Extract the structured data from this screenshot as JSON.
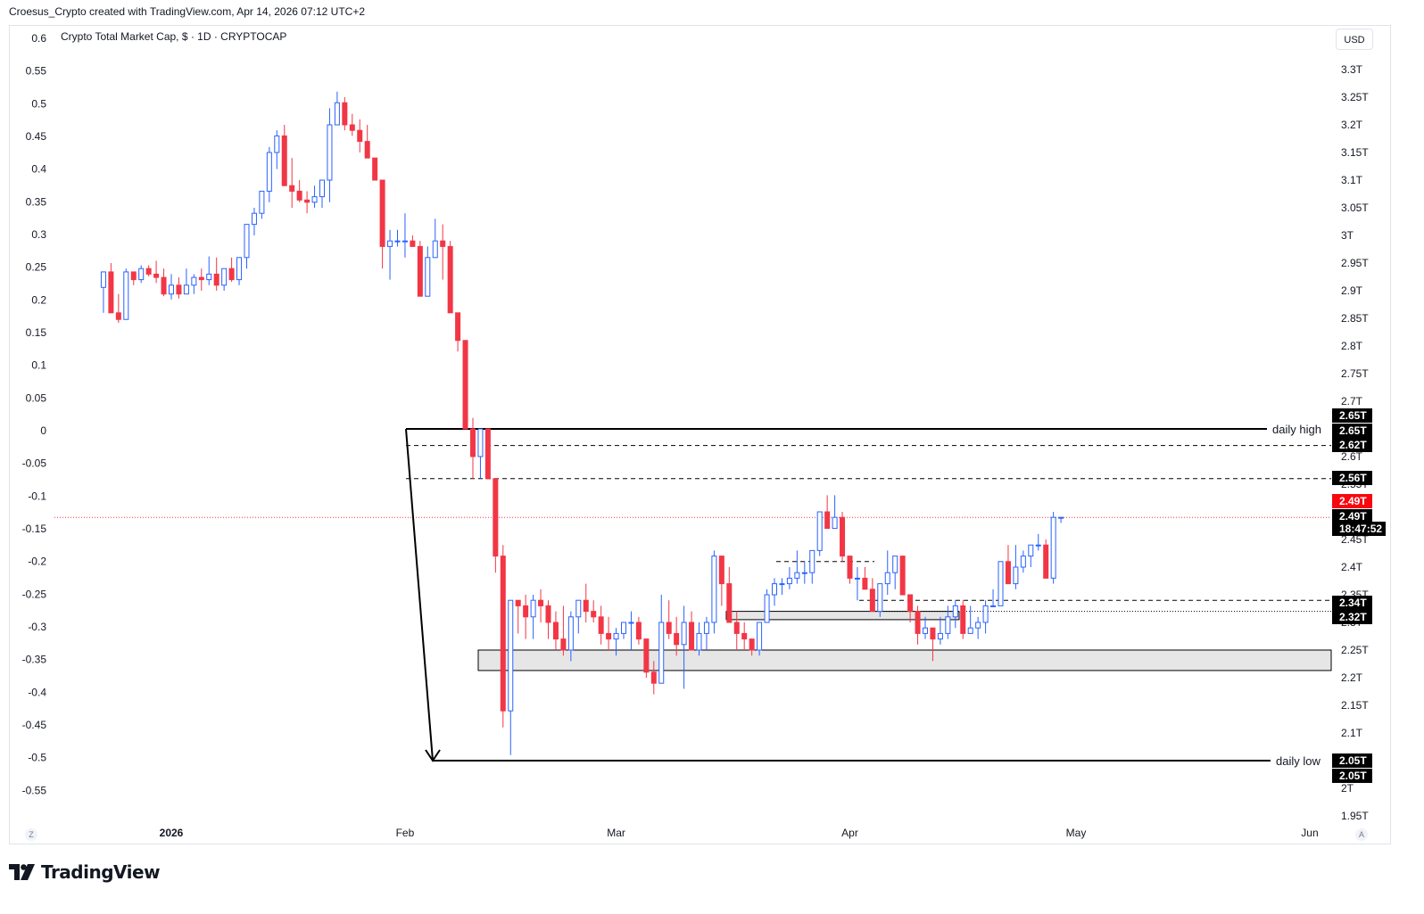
{
  "header": {
    "attribution": "Croesus_Crypto created with TradingView.com, Apr 14, 2026 07:12 UTC+2"
  },
  "legend": {
    "symbol_line": "Crypto Total Market Cap, $ · 1D · CRYPTOCAP"
  },
  "currency_button": "USD",
  "logo": {
    "text": "TradingView"
  },
  "corner_buttons": {
    "left": "Z",
    "right": "A"
  },
  "colors": {
    "up": "#2962ff",
    "down": "#f23645",
    "zone_fill": "#e6e6e6",
    "label_bg": "#000000",
    "current_price_bg": "#f7070f"
  },
  "chart_data": {
    "type": "candlestick",
    "title": "Crypto Total Market Cap, $ · 1D · CRYPTOCAP",
    "right_axis": {
      "unit": "USD",
      "range": [
        1.95,
        3.32
      ],
      "ticks": [
        "3.3T",
        "3.25T",
        "3.2T",
        "3.15T",
        "3.1T",
        "3.05T",
        "3T",
        "2.95T",
        "2.9T",
        "2.85T",
        "2.8T",
        "2.75T",
        "2.7T",
        "2.6T",
        "2.55T",
        "2.45T",
        "2.4T",
        "2.35T",
        "2.3T",
        "2.25T",
        "2.2T",
        "2.15T",
        "2.1T",
        "2T",
        "1.95T"
      ],
      "tick_values": [
        3.3,
        3.25,
        3.2,
        3.15,
        3.1,
        3.05,
        3.0,
        2.95,
        2.9,
        2.85,
        2.8,
        2.75,
        2.7,
        2.6,
        2.55,
        2.45,
        2.4,
        2.35,
        2.3,
        2.25,
        2.2,
        2.15,
        2.1,
        2.0,
        1.95
      ]
    },
    "left_axis": {
      "range": [
        -0.55,
        0.6
      ],
      "ticks": [
        "0.6",
        "0.55",
        "0.5",
        "0.45",
        "0.4",
        "0.35",
        "0.3",
        "0.25",
        "0.2",
        "0.15",
        "0.1",
        "0.05",
        "0",
        "-0.05",
        "-0.1",
        "-0.15",
        "-0.2",
        "-0.25",
        "-0.3",
        "-0.35",
        "-0.4",
        "-0.45",
        "-0.5",
        "-0.55"
      ],
      "tick_values": [
        0.6,
        0.55,
        0.5,
        0.45,
        0.4,
        0.35,
        0.3,
        0.25,
        0.2,
        0.15,
        0.1,
        0.05,
        0,
        -0.05,
        -0.1,
        -0.15,
        -0.2,
        -0.25,
        -0.3,
        -0.35,
        -0.4,
        -0.45,
        -0.5,
        -0.55
      ]
    },
    "x_axis": {
      "labels": [
        "2026",
        "Feb",
        "Mar",
        "Apr",
        "May",
        "Jun"
      ],
      "label_dates": [
        "2026-01-01",
        "2026-02-01",
        "2026-03-01",
        "2026-04-01",
        "2026-05-01",
        "2026-06-01"
      ]
    },
    "candles_start_date": "2025-12-23",
    "candles": [
      [
        2.906,
        2.934,
        2.86,
        2.934
      ],
      [
        2.934,
        2.95,
        2.86,
        2.86
      ],
      [
        2.86,
        2.894,
        2.842,
        2.848
      ],
      [
        2.848,
        2.94,
        2.848,
        2.934
      ],
      [
        2.934,
        2.934,
        2.91,
        2.92
      ],
      [
        2.92,
        2.946,
        2.914,
        2.94
      ],
      [
        2.94,
        2.946,
        2.926,
        2.93
      ],
      [
        2.93,
        2.954,
        2.914,
        2.924
      ],
      [
        2.924,
        2.94,
        2.89,
        2.894
      ],
      [
        2.894,
        2.93,
        2.884,
        2.91
      ],
      [
        2.91,
        2.924,
        2.886,
        2.894
      ],
      [
        2.894,
        2.94,
        2.894,
        2.91
      ],
      [
        2.91,
        2.93,
        2.894,
        2.924
      ],
      [
        2.924,
        2.94,
        2.9,
        2.92
      ],
      [
        2.92,
        2.962,
        2.91,
        2.93
      ],
      [
        2.93,
        2.96,
        2.9,
        2.91
      ],
      [
        2.91,
        2.94,
        2.9,
        2.94
      ],
      [
        2.94,
        2.96,
        2.916,
        2.92
      ],
      [
        2.92,
        2.96,
        2.91,
        2.96
      ],
      [
        2.96,
        3.02,
        2.94,
        3.02
      ],
      [
        3.02,
        3.05,
        3.0,
        3.04
      ],
      [
        3.04,
        3.08,
        3.03,
        3.08
      ],
      [
        3.08,
        3.16,
        3.06,
        3.15
      ],
      [
        3.15,
        3.19,
        3.12,
        3.18
      ],
      [
        3.18,
        3.2,
        3.09,
        3.09
      ],
      [
        3.09,
        3.14,
        3.05,
        3.08
      ],
      [
        3.08,
        3.1,
        3.06,
        3.064
      ],
      [
        3.064,
        3.08,
        3.04,
        3.06
      ],
      [
        3.06,
        3.09,
        3.05,
        3.07
      ],
      [
        3.07,
        3.1,
        3.05,
        3.1
      ],
      [
        3.1,
        3.23,
        3.06,
        3.2
      ],
      [
        3.2,
        3.26,
        3.2,
        3.24
      ],
      [
        3.24,
        3.25,
        3.19,
        3.2
      ],
      [
        3.2,
        3.22,
        3.18,
        3.19
      ],
      [
        3.19,
        3.21,
        3.15,
        3.17
      ],
      [
        3.17,
        3.2,
        3.14,
        3.14
      ],
      [
        3.14,
        3.14,
        3.1,
        3.1
      ],
      [
        3.1,
        3.1,
        2.94,
        2.98
      ],
      [
        2.98,
        3.01,
        2.92,
        2.99
      ],
      [
        2.99,
        3.01,
        2.98,
        2.99
      ],
      [
        2.99,
        3.04,
        2.96,
        2.99
      ],
      [
        2.99,
        3.0,
        2.98,
        2.98
      ],
      [
        2.98,
        2.99,
        2.89,
        2.89
      ],
      [
        2.89,
        2.98,
        2.89,
        2.96
      ],
      [
        2.96,
        3.03,
        2.96,
        2.99
      ],
      [
        2.99,
        3.02,
        2.92,
        2.98
      ],
      [
        2.98,
        2.99,
        2.86,
        2.86
      ],
      [
        2.86,
        2.86,
        2.79,
        2.81
      ],
      [
        2.81,
        2.81,
        2.65,
        2.65
      ],
      [
        2.65,
        2.67,
        2.56,
        2.6
      ],
      [
        2.6,
        2.65,
        2.56,
        2.65
      ],
      [
        2.65,
        2.65,
        2.56,
        2.56
      ],
      [
        2.56,
        2.56,
        2.39,
        2.42
      ],
      [
        2.42,
        2.44,
        2.11,
        2.14
      ],
      [
        2.14,
        2.34,
        2.06,
        2.34
      ],
      [
        2.34,
        2.34,
        2.28,
        2.33
      ],
      [
        2.33,
        2.35,
        2.27,
        2.31
      ],
      [
        2.31,
        2.35,
        2.27,
        2.34
      ],
      [
        2.34,
        2.36,
        2.3,
        2.33
      ],
      [
        2.33,
        2.34,
        2.27,
        2.3
      ],
      [
        2.3,
        2.32,
        2.25,
        2.27
      ],
      [
        2.27,
        2.33,
        2.24,
        2.25
      ],
      [
        2.25,
        2.32,
        2.23,
        2.31
      ],
      [
        2.31,
        2.34,
        2.28,
        2.34
      ],
      [
        2.34,
        2.37,
        2.3,
        2.32
      ],
      [
        2.32,
        2.34,
        2.3,
        2.31
      ],
      [
        2.31,
        2.33,
        2.26,
        2.28
      ],
      [
        2.28,
        2.31,
        2.25,
        2.27
      ],
      [
        2.27,
        2.29,
        2.24,
        2.28
      ],
      [
        2.28,
        2.3,
        2.27,
        2.3
      ],
      [
        2.3,
        2.32,
        2.25,
        2.3
      ],
      [
        2.3,
        2.31,
        2.26,
        2.27
      ],
      [
        2.27,
        2.27,
        2.2,
        2.21
      ],
      [
        2.21,
        2.23,
        2.17,
        2.19
      ],
      [
        2.19,
        2.35,
        2.19,
        2.3
      ],
      [
        2.3,
        2.34,
        2.27,
        2.28
      ],
      [
        2.28,
        2.31,
        2.24,
        2.26
      ],
      [
        2.26,
        2.33,
        2.18,
        2.3
      ],
      [
        2.3,
        2.32,
        2.25,
        2.25
      ],
      [
        2.25,
        2.3,
        2.24,
        2.28
      ],
      [
        2.28,
        2.31,
        2.25,
        2.3
      ],
      [
        2.3,
        2.43,
        2.28,
        2.42
      ],
      [
        2.42,
        2.41,
        2.33,
        2.37
      ],
      [
        2.37,
        2.4,
        2.31,
        2.3
      ],
      [
        2.3,
        2.32,
        2.25,
        2.28
      ],
      [
        2.28,
        2.3,
        2.25,
        2.27
      ],
      [
        2.27,
        2.27,
        2.24,
        2.25
      ],
      [
        2.25,
        2.3,
        2.24,
        2.3
      ],
      [
        2.3,
        2.36,
        2.3,
        2.35
      ],
      [
        2.35,
        2.38,
        2.33,
        2.37
      ],
      [
        2.37,
        2.38,
        2.35,
        2.37
      ],
      [
        2.37,
        2.4,
        2.36,
        2.38
      ],
      [
        2.38,
        2.43,
        2.37,
        2.39
      ],
      [
        2.39,
        2.41,
        2.37,
        2.39
      ],
      [
        2.39,
        2.43,
        2.37,
        2.43
      ],
      [
        2.43,
        2.5,
        2.42,
        2.5
      ],
      [
        2.5,
        2.53,
        2.48,
        2.47
      ],
      [
        2.47,
        2.53,
        2.47,
        2.49
      ],
      [
        2.49,
        2.5,
        2.41,
        2.42
      ],
      [
        2.42,
        2.42,
        2.37,
        2.38
      ],
      [
        2.38,
        2.4,
        2.34,
        2.38
      ],
      [
        2.38,
        2.4,
        2.36,
        2.36
      ],
      [
        2.36,
        2.38,
        2.33,
        2.32
      ],
      [
        2.32,
        2.37,
        2.31,
        2.37
      ],
      [
        2.37,
        2.43,
        2.35,
        2.39
      ],
      [
        2.39,
        2.42,
        2.36,
        2.42
      ],
      [
        2.42,
        2.42,
        2.35,
        2.35
      ],
      [
        2.35,
        2.35,
        2.3,
        2.32
      ],
      [
        2.32,
        2.33,
        2.26,
        2.28
      ],
      [
        2.28,
        2.31,
        2.27,
        2.29
      ],
      [
        2.29,
        2.29,
        2.23,
        2.27
      ],
      [
        2.27,
        2.31,
        2.26,
        2.28
      ],
      [
        2.28,
        2.33,
        2.27,
        2.31
      ],
      [
        2.31,
        2.34,
        2.29,
        2.33
      ],
      [
        2.33,
        2.34,
        2.27,
        2.28
      ],
      [
        2.28,
        2.33,
        2.28,
        2.29
      ],
      [
        2.29,
        2.31,
        2.27,
        2.3
      ],
      [
        2.3,
        2.34,
        2.28,
        2.33
      ],
      [
        2.33,
        2.36,
        2.33,
        2.33
      ],
      [
        2.33,
        2.41,
        2.33,
        2.41
      ],
      [
        2.41,
        2.44,
        2.37,
        2.37
      ],
      [
        2.37,
        2.44,
        2.36,
        2.4
      ],
      [
        2.4,
        2.43,
        2.39,
        2.42
      ],
      [
        2.42,
        2.44,
        2.4,
        2.44
      ],
      [
        2.44,
        2.46,
        2.43,
        2.44
      ],
      [
        2.44,
        2.45,
        2.38,
        2.38
      ],
      [
        2.38,
        2.5,
        2.37,
        2.49
      ],
      [
        2.49,
        2.49,
        2.48,
        2.49
      ]
    ],
    "levels": [
      {
        "label": "daily high",
        "value": 2.65,
        "style": "solid"
      },
      {
        "label": "daily low",
        "value": 2.05,
        "style": "solid"
      },
      {
        "value": 2.62,
        "style": "dashed"
      },
      {
        "value": 2.56,
        "style": "dashed"
      },
      {
        "value": 2.41,
        "style": "dashed"
      },
      {
        "value": 2.34,
        "style": "dashed"
      },
      {
        "value": 2.32,
        "style": "dotted"
      },
      {
        "value": 2.49,
        "style": "dotted-red",
        "note": "current price"
      }
    ],
    "zones": [
      {
        "top": 2.32,
        "bottom": 2.305
      },
      {
        "top": 2.25,
        "bottom": 2.213
      }
    ],
    "price_labels": [
      {
        "text": "2.65T",
        "value": 2.65
      },
      {
        "text": "2.65T",
        "value": 2.65
      },
      {
        "text": "2.62T",
        "value": 2.62
      },
      {
        "text": "2.56T",
        "value": 2.56
      },
      {
        "text": "2.49T",
        "value": 2.49,
        "current": true
      },
      {
        "text": "2.49T",
        "value": 2.49
      },
      {
        "text": "18:47:52",
        "value": 2.49
      },
      {
        "text": "2.34T",
        "value": 2.34
      },
      {
        "text": "2.32T",
        "value": 2.32
      },
      {
        "text": "2.05T",
        "value": 2.05
      },
      {
        "text": "2.05T",
        "value": 2.05
      }
    ],
    "drop_arrow": {
      "from": {
        "date": "2026-02-02",
        "value": 2.65
      },
      "to": {
        "date": "2026-02-06",
        "value": 2.05
      }
    }
  }
}
